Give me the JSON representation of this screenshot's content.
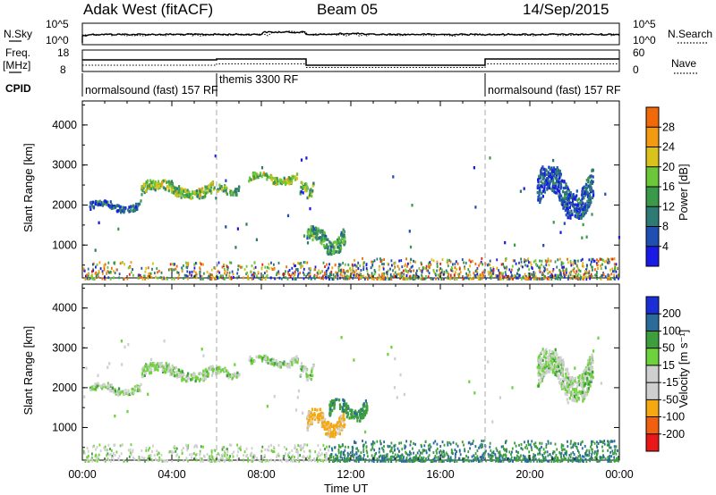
{
  "header": {
    "station": "Adak West (fitACF)",
    "beam": "Beam 05",
    "date": "14/Sep/2015"
  },
  "left_labels": {
    "nsky": "N.Sky",
    "freq": "Freq.",
    "freq_unit": "[MHz]",
    "cpid": "CPID"
  },
  "right_labels": {
    "nsearch": "N.Search",
    "nave": "Nave"
  },
  "noise_ticks_left": [
    "10^5",
    "10^0"
  ],
  "noise_ticks_right": [
    "10^5",
    "10^0"
  ],
  "freq_ticks": [
    "18",
    "8"
  ],
  "nave_ticks": [
    "60",
    "0"
  ],
  "cpid_labels": [
    {
      "text": "normalsound (fast) 157 RF",
      "start_hour": 0
    },
    {
      "text": "themis 3300 RF",
      "start_hour": 6
    },
    {
      "text": "normalsound (fast) 157 RF",
      "start_hour": 18
    }
  ],
  "colors": {
    "power": [
      "#1a1ae6",
      "#1f4fb3",
      "#2e7a74",
      "#3a9a4a",
      "#6cc83a",
      "#d9c21a",
      "#f29a10",
      "#f06a0a",
      "#e8201a"
    ],
    "velocity": [
      "#e81818",
      "#f06010",
      "#f5a810",
      "#cfcfcf",
      "#cfcfcf",
      "#6ed23c",
      "#3c9e3c",
      "#2a6b9a",
      "#1a2ed6"
    ]
  },
  "chart_data": [
    {
      "type": "heatmap",
      "name": "power",
      "ylabel": "Slant Range [km]",
      "y_ticks": [
        "1000",
        "2000",
        "3000",
        "4000"
      ],
      "ylim": [
        180,
        4600
      ],
      "xlim_hours": [
        0,
        24
      ],
      "colorbar_label": "Power [dB]",
      "colorbar_ticks": [
        "4",
        "8",
        "12",
        "16",
        "20",
        "24",
        "28"
      ],
      "clim": [
        0,
        32
      ],
      "features": [
        {
          "t0": 0.3,
          "t1": 2.6,
          "r0": 1850,
          "r1": 2150,
          "p": 7
        },
        {
          "t0": 2.6,
          "t1": 5.9,
          "r0": 2200,
          "r1": 2650,
          "p": 16
        },
        {
          "t0": 5.9,
          "t1": 7.0,
          "r0": 2250,
          "r1": 2550,
          "p": 14
        },
        {
          "t0": 7.4,
          "t1": 9.6,
          "r0": 2550,
          "r1": 2850,
          "p": 17
        },
        {
          "t0": 9.7,
          "t1": 10.3,
          "r0": 2200,
          "r1": 2650,
          "p": 15
        },
        {
          "t0": 10.0,
          "t1": 11.7,
          "r0": 800,
          "r1": 1500,
          "p": 12
        },
        {
          "t0": 20.3,
          "t1": 22.8,
          "r0": 1700,
          "r1": 3000,
          "p": 6
        }
      ],
      "cpid_boundary_hours": [
        6,
        18
      ],
      "ground_scatter_range": [
        180,
        650
      ]
    },
    {
      "type": "heatmap",
      "name": "velocity",
      "ylabel": "Slant Range [km]",
      "y_ticks": [
        "1000",
        "2000",
        "3000",
        "4000"
      ],
      "ylim": [
        180,
        4600
      ],
      "xlim_hours": [
        0,
        24
      ],
      "colorbar_label": "Velocity [m s⁻¹]",
      "colorbar_ticks": [
        "-200",
        "-100",
        "-50",
        "-15",
        "15",
        "50",
        "100",
        "200"
      ],
      "clim": [
        -250,
        250
      ],
      "features": [
        {
          "t0": 0.3,
          "t1": 2.6,
          "r0": 1850,
          "r1": 2150,
          "v": 0
        },
        {
          "t0": 2.6,
          "t1": 5.9,
          "r0": 2200,
          "r1": 2650,
          "v": 0
        },
        {
          "t0": 5.9,
          "t1": 7.0,
          "r0": 2250,
          "r1": 2550,
          "v": 0
        },
        {
          "t0": 7.4,
          "t1": 9.6,
          "r0": 2550,
          "r1": 2850,
          "v": 0
        },
        {
          "t0": 9.7,
          "t1": 10.3,
          "r0": 2200,
          "r1": 2650,
          "v": 0
        },
        {
          "t0": 10.0,
          "t1": 11.7,
          "r0": 800,
          "r1": 1500,
          "v": -60
        },
        {
          "t0": 11.0,
          "t1": 12.7,
          "r0": 1200,
          "r1": 1750,
          "v": 40
        },
        {
          "t0": 20.3,
          "t1": 22.8,
          "r0": 1700,
          "r1": 3000,
          "v": 0
        }
      ],
      "cpid_boundary_hours": [
        6,
        18
      ],
      "ground_scatter_range": [
        180,
        650
      ]
    }
  ],
  "x_axis": {
    "label": "Time UT",
    "ticks": [
      "00:00",
      "04:00",
      "08:00",
      "12:00",
      "16:00",
      "20:00",
      "00:00"
    ]
  }
}
